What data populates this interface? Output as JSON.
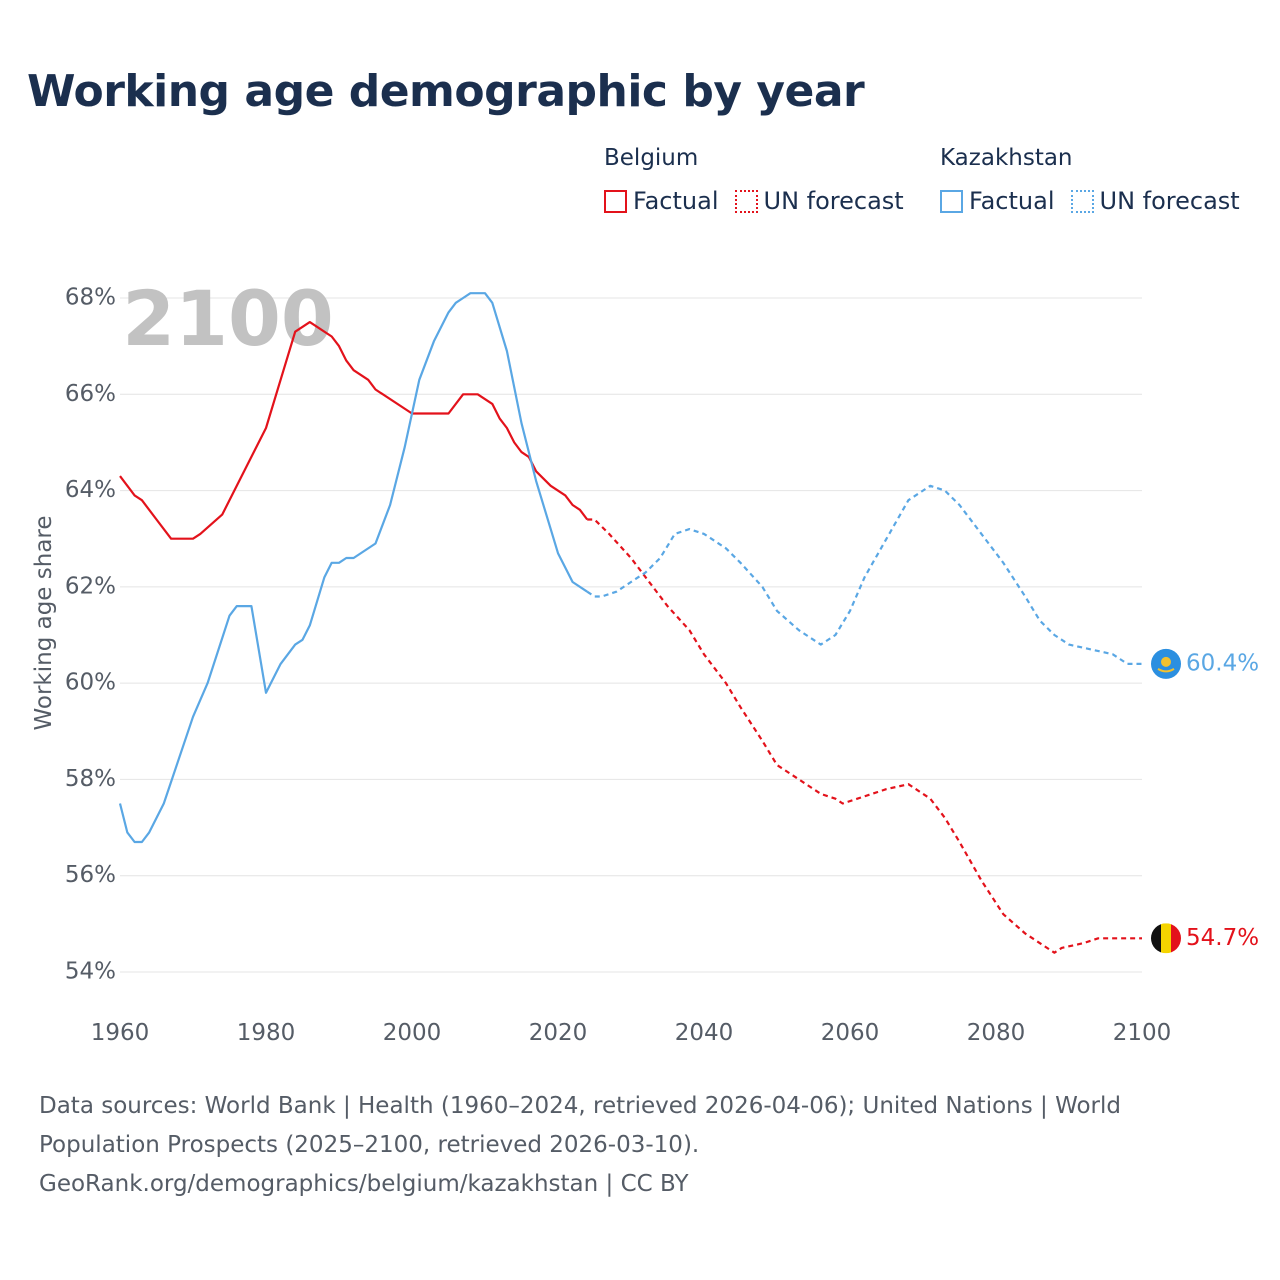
{
  "title": "Working age demographic by year",
  "legend": {
    "groups": [
      {
        "name": "Belgium",
        "color": "#e3121b",
        "factual_label": "Factual",
        "forecast_label": "UN forecast"
      },
      {
        "name": "Kazakhstan",
        "color": "#5aa7e4",
        "factual_label": "Factual",
        "forecast_label": "UN forecast"
      }
    ]
  },
  "year_watermark": "2100",
  "source": {
    "line1": "Data sources: World Bank | Health (1960–2024, retrieved 2026-04-06); United Nations | World",
    "line2": "Population Prospects (2025–2100, retrieved 2026-03-10).",
    "line3": "GeoRank.org/demographics/belgium/kazakhstan | CC BY"
  },
  "chart_data": {
    "type": "line",
    "title": "Working age demographic by year",
    "xlabel": "",
    "ylabel": "Working age share",
    "xlim": [
      1960,
      2100
    ],
    "ylim": [
      54,
      68
    ],
    "x_ticks": [
      1960,
      1980,
      2000,
      2020,
      2040,
      2060,
      2080,
      2100
    ],
    "x_tick_labels": [
      "1960",
      "1980",
      "2000",
      "2020",
      "2040",
      "2060",
      "2080",
      "2100"
    ],
    "y_ticks": [
      54,
      56,
      58,
      60,
      62,
      64,
      66,
      68
    ],
    "y_tick_labels": [
      "54%",
      "56%",
      "58%",
      "60%",
      "62%",
      "64%",
      "66%",
      "68%"
    ],
    "grid": true,
    "forecast_start_year": 2024,
    "series": [
      {
        "name": "Belgium",
        "color": "#e3121b",
        "end_label": "54.7%",
        "x": [
          1960,
          1962,
          1963,
          1965,
          1967,
          1970,
          1971,
          1974,
          1980,
          1982,
          1984,
          1986,
          1989,
          1990,
          1991,
          1992,
          1994,
          1995,
          2000,
          2005,
          2007,
          2009,
          2011,
          2012,
          2013,
          2014,
          2015,
          2016,
          2017,
          2019,
          2021,
          2022,
          2023,
          2024,
          2025,
          2027,
          2030,
          2035,
          2038,
          2040,
          2043,
          2045,
          2048,
          2050,
          2053,
          2056,
          2058,
          2059,
          2061,
          2063,
          2065,
          2068,
          2071,
          2073,
          2075,
          2078,
          2081,
          2084,
          2088,
          2089,
          2092,
          2094,
          2097,
          2100
        ],
        "y": [
          64.3,
          63.9,
          63.8,
          63.4,
          63.0,
          63.0,
          63.1,
          63.5,
          65.3,
          66.3,
          67.3,
          67.5,
          67.2,
          67.0,
          66.7,
          66.5,
          66.3,
          66.1,
          65.6,
          65.6,
          66.0,
          66.0,
          65.8,
          65.5,
          65.3,
          65.0,
          64.8,
          64.7,
          64.4,
          64.1,
          63.9,
          63.7,
          63.6,
          63.4,
          63.4,
          63.1,
          62.6,
          61.6,
          61.1,
          60.6,
          60.0,
          59.5,
          58.8,
          58.3,
          58.0,
          57.7,
          57.6,
          57.5,
          57.6,
          57.7,
          57.8,
          57.9,
          57.6,
          57.2,
          56.7,
          55.9,
          55.2,
          54.8,
          54.4,
          54.5,
          54.6,
          54.7,
          54.7,
          54.7
        ]
      },
      {
        "name": "Kazakhstan",
        "color": "#5aa7e4",
        "end_label": "60.4%",
        "x": [
          1960,
          1961,
          1962,
          1963,
          1964,
          1966,
          1970,
          1972,
          1975,
          1976,
          1978,
          1980,
          1982,
          1984,
          1985,
          1986,
          1988,
          1989,
          1990,
          1991,
          1992,
          1995,
          1997,
          1999,
          2001,
          2003,
          2005,
          2006,
          2007,
          2008,
          2009,
          2010,
          2011,
          2013,
          2015,
          2017,
          2019,
          2020,
          2022,
          2024,
          2025,
          2026,
          2028,
          2030,
          2032,
          2034,
          2036,
          2038,
          2040,
          2043,
          2045,
          2048,
          2050,
          2053,
          2056,
          2058,
          2060,
          2062,
          2065,
          2068,
          2071,
          2073,
          2075,
          2078,
          2081,
          2084,
          2086,
          2088,
          2090,
          2093,
          2096,
          2098,
          2100
        ],
        "y": [
          57.5,
          56.9,
          56.7,
          56.7,
          56.9,
          57.5,
          59.3,
          60.0,
          61.4,
          61.6,
          61.6,
          59.8,
          60.4,
          60.8,
          60.9,
          61.2,
          62.2,
          62.5,
          62.5,
          62.6,
          62.6,
          62.9,
          63.7,
          64.9,
          66.3,
          67.1,
          67.7,
          67.9,
          68.0,
          68.1,
          68.1,
          68.1,
          67.9,
          66.9,
          65.4,
          64.2,
          63.2,
          62.7,
          62.1,
          61.9,
          61.8,
          61.8,
          61.9,
          62.1,
          62.3,
          62.6,
          63.1,
          63.2,
          63.1,
          62.8,
          62.5,
          62.0,
          61.5,
          61.1,
          60.8,
          61.0,
          61.5,
          62.2,
          63.0,
          63.8,
          64.1,
          64.0,
          63.7,
          63.1,
          62.5,
          61.8,
          61.3,
          61.0,
          60.8,
          60.7,
          60.6,
          60.4,
          60.4
        ]
      }
    ]
  }
}
